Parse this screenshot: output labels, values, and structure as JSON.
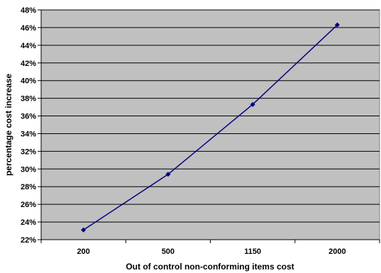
{
  "chart_data": {
    "type": "line",
    "title": "",
    "xlabel": "Out of control non-conforming items cost",
    "ylabel": "percentage cost increase",
    "categories": [
      "200",
      "500",
      "1150",
      "2000"
    ],
    "series": [
      {
        "values": [
          23.1,
          29.4,
          37.3,
          46.3
        ]
      }
    ],
    "ylim": [
      22,
      48
    ],
    "yticks": [
      "22%",
      "24%",
      "26%",
      "28%",
      "30%",
      "32%",
      "34%",
      "36%",
      "38%",
      "40%",
      "42%",
      "44%",
      "46%",
      "48%"
    ],
    "grid": true,
    "legend": "none",
    "colors": {
      "plot_background": "#c0c0c0",
      "line": "#000080",
      "marker": "#000080",
      "gridline": "#000000"
    }
  }
}
